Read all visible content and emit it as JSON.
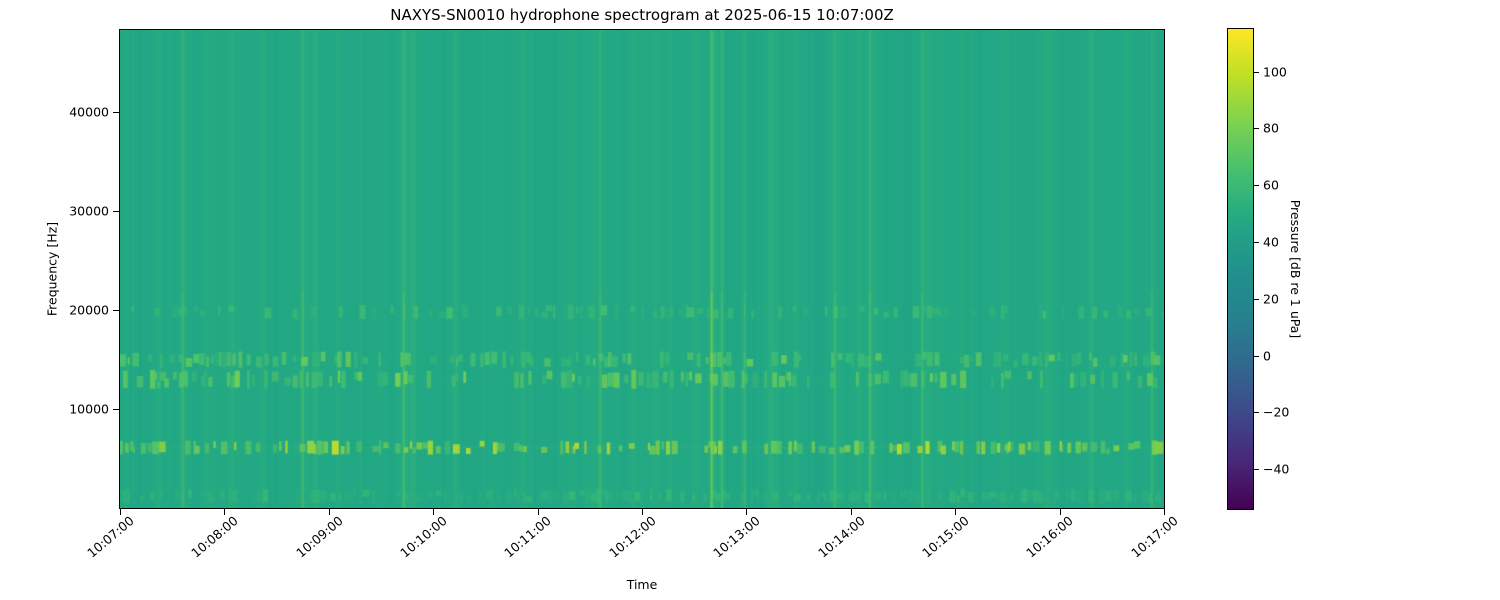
{
  "chart_data": {
    "type": "heatmap",
    "subtype": "spectrogram",
    "title": "NAXYS-SN0010 hydrophone spectrogram at 2025-06-15 10:07:00Z",
    "xlabel": "Time",
    "ylabel": "Frequency [Hz]",
    "x_tick_labels": [
      "10:07:00",
      "10:08:00",
      "10:09:00",
      "10:10:00",
      "10:11:00",
      "10:12:00",
      "10:13:00",
      "10:14:00",
      "10:15:00",
      "10:16:00",
      "10:17:00"
    ],
    "duration_s": 600,
    "freq_range_hz": [
      0,
      48300
    ],
    "y_ticks": [
      {
        "value": 10000,
        "label": "10000"
      },
      {
        "value": 20000,
        "label": "20000"
      },
      {
        "value": 30000,
        "label": "30000"
      },
      {
        "value": 40000,
        "label": "40000"
      }
    ],
    "grid": false,
    "colorbar": {
      "label": "Pressure [dB re 1 uPa]",
      "colormap": "viridis",
      "vmin": -54,
      "vmax": 115,
      "ticks": [
        {
          "value": 100,
          "label": "100"
        },
        {
          "value": 80,
          "label": "80"
        },
        {
          "value": 60,
          "label": "60"
        },
        {
          "value": 40,
          "label": "40"
        },
        {
          "value": 20,
          "label": "20"
        },
        {
          "value": 0,
          "label": "0"
        },
        {
          "value": -20,
          "label": "−20"
        },
        {
          "value": -40,
          "label": "−40"
        }
      ]
    },
    "background_level_db": 47,
    "bands": [
      {
        "name": "click-band-6kHz",
        "f_low_hz": 5500,
        "f_high_hz": 6700,
        "level_db_min": 68,
        "level_db_max": 102,
        "density": 0.5
      },
      {
        "name": "band-13kHz",
        "f_low_hz": 12200,
        "f_high_hz": 13800,
        "level_db_min": 58,
        "level_db_max": 80,
        "density": 0.42
      },
      {
        "name": "band-15kHz",
        "f_low_hz": 14300,
        "f_high_hz": 15700,
        "level_db_min": 56,
        "level_db_max": 76,
        "density": 0.38
      },
      {
        "name": "band-20kHz",
        "f_low_hz": 19200,
        "f_high_hz": 20400,
        "level_db_min": 52,
        "level_db_max": 64,
        "density": 0.3
      },
      {
        "name": "band-low-1kHz",
        "f_low_hz": 600,
        "f_high_hz": 1800,
        "level_db_min": 50,
        "level_db_max": 58,
        "density": 0.5
      }
    ],
    "transient_events": [
      {
        "t_s": 4,
        "strength": 0.5
      },
      {
        "t_s": 22,
        "strength": 0.45
      },
      {
        "t_s": 36,
        "strength": 0.55
      },
      {
        "t_s": 50,
        "strength": 0.4
      },
      {
        "t_s": 64,
        "strength": 0.5
      },
      {
        "t_s": 82,
        "strength": 0.45
      },
      {
        "t_s": 105,
        "strength": 0.6
      },
      {
        "t_s": 112,
        "strength": 0.4
      },
      {
        "t_s": 125,
        "strength": 0.5
      },
      {
        "t_s": 138,
        "strength": 0.45
      },
      {
        "t_s": 163,
        "strength": 0.65
      },
      {
        "t_s": 168,
        "strength": 0.5
      },
      {
        "t_s": 193,
        "strength": 0.5
      },
      {
        "t_s": 214,
        "strength": 0.4
      },
      {
        "t_s": 232,
        "strength": 0.45
      },
      {
        "t_s": 259,
        "strength": 0.5
      },
      {
        "t_s": 276,
        "strength": 0.55
      },
      {
        "t_s": 295,
        "strength": 0.5
      },
      {
        "t_s": 309,
        "strength": 0.45
      },
      {
        "t_s": 330,
        "strength": 0.5
      },
      {
        "t_s": 340,
        "strength": 1.0
      },
      {
        "t_s": 346,
        "strength": 0.6
      },
      {
        "t_s": 359,
        "strength": 0.55
      },
      {
        "t_s": 374,
        "strength": 0.4
      },
      {
        "t_s": 388,
        "strength": 0.5
      },
      {
        "t_s": 411,
        "strength": 0.55
      },
      {
        "t_s": 424,
        "strength": 0.4
      },
      {
        "t_s": 431,
        "strength": 0.6
      },
      {
        "t_s": 461,
        "strength": 0.55
      },
      {
        "t_s": 470,
        "strength": 0.4
      },
      {
        "t_s": 483,
        "strength": 0.5
      },
      {
        "t_s": 507,
        "strength": 0.4
      },
      {
        "t_s": 532,
        "strength": 0.5
      },
      {
        "t_s": 558,
        "strength": 0.45
      },
      {
        "t_s": 578,
        "strength": 0.5
      },
      {
        "t_s": 593,
        "strength": 0.55
      }
    ],
    "colors": {
      "figure_bg": "#ffffff",
      "axis_text": "#000000",
      "spine": "#000000",
      "mean_background": "#22a884",
      "bright_speckle": "#bddf26",
      "viridis_stops": [
        "#440154",
        "#482878",
        "#3e4989",
        "#31688e",
        "#26828e",
        "#21918c",
        "#22a884",
        "#44bf70",
        "#7ad151",
        "#bddf26",
        "#fde725"
      ]
    }
  }
}
